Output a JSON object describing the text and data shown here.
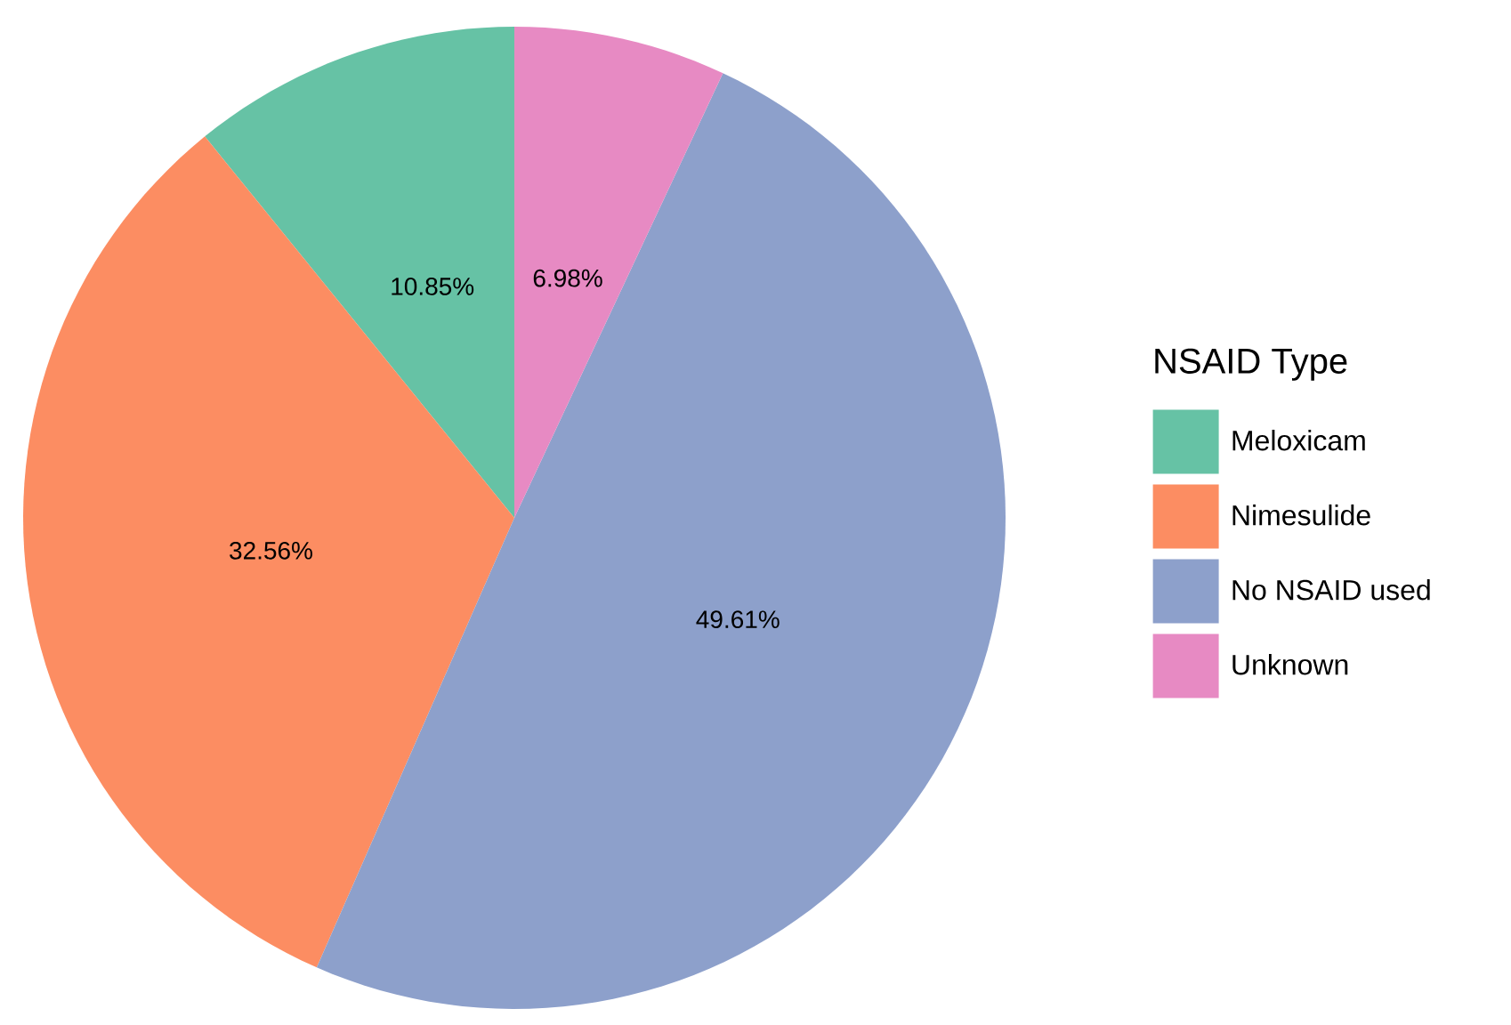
{
  "chart_data": {
    "type": "pie",
    "legend_title": "NSAID Type",
    "categories": [
      "Meloxicam",
      "Nimesulide",
      "No NSAID used",
      "Unknown"
    ],
    "values": [
      10.85,
      32.56,
      49.61,
      6.98
    ],
    "colors": [
      "#66c2a5",
      "#fc8d62",
      "#8da0cb",
      "#e78ac3"
    ],
    "value_labels": [
      "10.85%",
      "32.56%",
      "49.61%",
      "6.98%"
    ],
    "legend": "right"
  }
}
